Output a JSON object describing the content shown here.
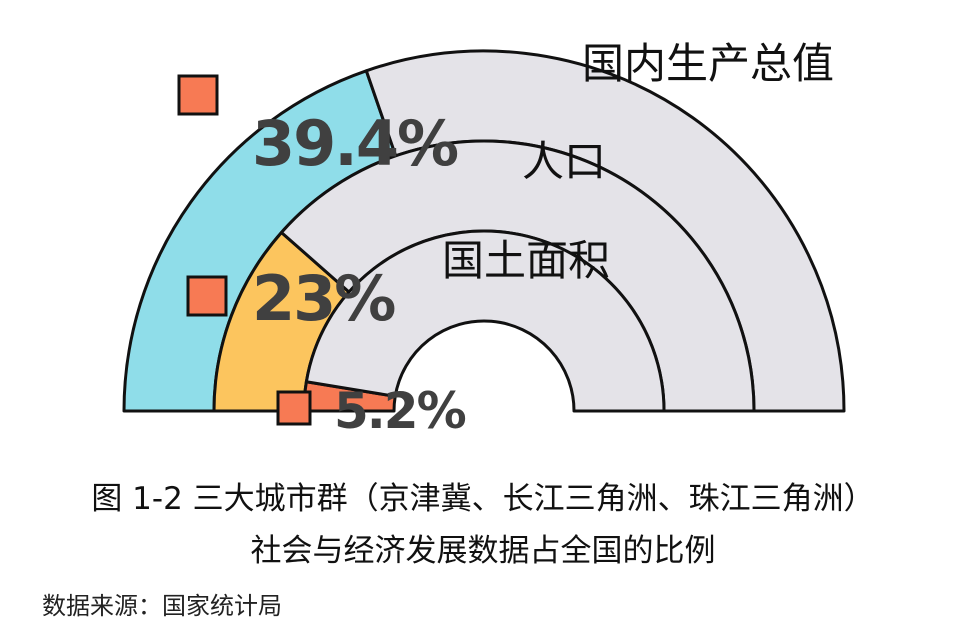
{
  "chart_data": {
    "type": "pie",
    "subtype": "concentric-semicircle-donut",
    "title": "图 1-2 三大城市群（京津冀、长江三角洲、珠江三角洲）社会与经济发展数据占全国的比例",
    "source": "数据来源：国家统计局",
    "series": [
      {
        "name": "国内生产总值",
        "ring": "outer",
        "value": 39.4,
        "label": "39.4%",
        "color": "#8fdde9",
        "rest_color": "#e4e3e8"
      },
      {
        "name": "人口",
        "ring": "middle",
        "value": 23,
        "label": "23%",
        "color": "#fcc55e",
        "rest_color": "#e4e3e8"
      },
      {
        "name": "国土面积",
        "ring": "inner",
        "value": 5.2,
        "label": "5.2%",
        "color": "#f77a54",
        "rest_color": "#e4e3e8"
      }
    ],
    "marker_color": "#f77a54",
    "unit": "%"
  },
  "labels": {
    "gdp": "国内生产总值",
    "population": "人口",
    "area": "国土面积",
    "gdp_pct": "39.4%",
    "population_pct": "23%",
    "area_pct": "5.2%"
  },
  "caption": {
    "line1": "图 1-2 三大城市群（京津冀、长江三角洲、珠江三角洲）",
    "line2": "社会与经济发展数据占全国的比例",
    "source": "数据来源：国家统计局"
  }
}
